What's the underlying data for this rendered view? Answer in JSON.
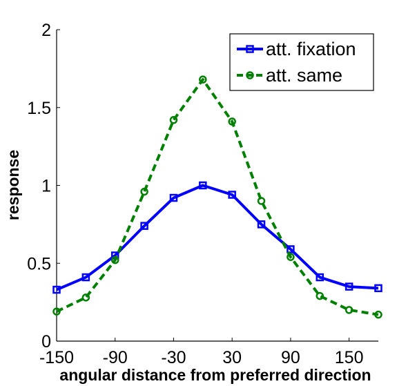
{
  "chart_data": {
    "type": "line",
    "xlabel": "angular distance from preferred direction",
    "ylabel": "response",
    "xlim": [
      -150,
      180
    ],
    "ylim": [
      0,
      2
    ],
    "xticks": [
      -150,
      -90,
      -30,
      30,
      90,
      150
    ],
    "xtick_labels": [
      "-150",
      "-90",
      "-30",
      "30",
      "90",
      "150"
    ],
    "yticks": [
      0,
      0.5,
      1,
      1.5,
      2
    ],
    "ytick_labels": [
      "0",
      "0.5",
      "1",
      "1.5",
      "2"
    ],
    "grid": false,
    "legend_position": "top-right",
    "x": [
      -150,
      -120,
      -90,
      -60,
      -30,
      0,
      30,
      60,
      90,
      120,
      150,
      180
    ],
    "series": [
      {
        "name": "att. fixation",
        "color": "#0000ff",
        "line_style": "solid",
        "marker": "square",
        "values": [
          0.33,
          0.41,
          0.55,
          0.74,
          0.92,
          1.0,
          0.94,
          0.75,
          0.59,
          0.41,
          0.35,
          0.34
        ]
      },
      {
        "name": "att. same",
        "color": "#008000",
        "line_style": "dashed",
        "marker": "circle",
        "values": [
          0.19,
          0.28,
          0.52,
          0.96,
          1.42,
          1.68,
          1.41,
          0.9,
          0.54,
          0.29,
          0.2,
          0.17
        ]
      }
    ]
  }
}
